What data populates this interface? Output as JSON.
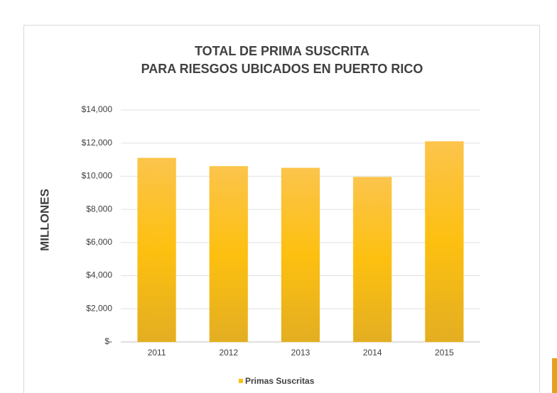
{
  "chart_data": {
    "type": "bar",
    "title": [
      "TOTAL DE PRIMA SUSCRITA",
      "PARA RIESGOS UBICADOS EN PUERTO RICO"
    ],
    "y_label": "MILLONES",
    "categories": [
      "2011",
      "2012",
      "2013",
      "2014",
      "2015"
    ],
    "series": [
      {
        "name": "Primas Suscritas",
        "color": "#fdc010",
        "values": [
          11100,
          10600,
          10500,
          9950,
          12100
        ]
      }
    ],
    "ylim": [
      0,
      14000
    ],
    "yticks": [
      {
        "value": 0,
        "label": "$-"
      },
      {
        "value": 2000,
        "label": "$2,000"
      },
      {
        "value": 4000,
        "label": "$4,000"
      },
      {
        "value": 6000,
        "label": "$6,000"
      },
      {
        "value": 8000,
        "label": "$8,000"
      },
      {
        "value": 10000,
        "label": "$10,000"
      },
      {
        "value": 12000,
        "label": "$12,000"
      },
      {
        "value": 14000,
        "label": "$14,000"
      }
    ],
    "grid": true,
    "legend": "bottom"
  }
}
